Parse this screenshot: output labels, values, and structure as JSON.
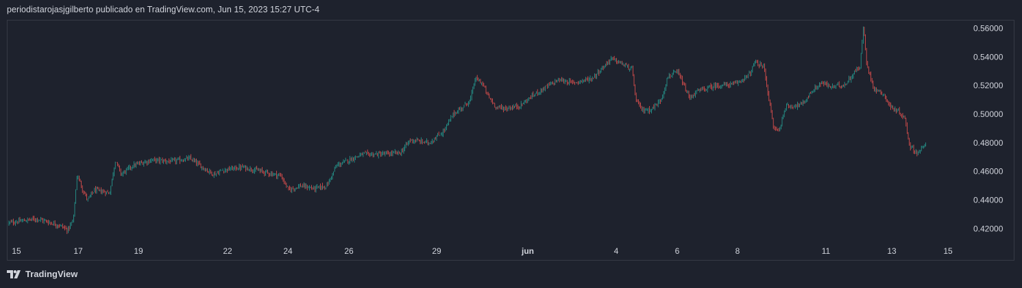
{
  "header": {
    "publisher_line": "periodistarojasjgilberto publicado en TradingView.com, Jun 15, 2023 15:27 UTC-4"
  },
  "footer": {
    "brand": "TradingView",
    "logo_icon": "tradingview-logo-icon"
  },
  "colors": {
    "background": "#1e222d",
    "up": "#26a69a",
    "down": "#ef5350",
    "text": "#d1d4dc",
    "border": "#363a45"
  },
  "chart_data": {
    "type": "candlestick",
    "title": "",
    "xlabel": "",
    "ylabel": "",
    "x_ticks": [
      "15",
      "17",
      "19",
      "22",
      "24",
      "26",
      "29",
      "jun",
      "4",
      "6",
      "8",
      "11",
      "13",
      "15"
    ],
    "bold_x_tick": "jun",
    "y_ticks": [
      "0.56000",
      "0.54000",
      "0.52000",
      "0.50000",
      "0.48000",
      "0.46000",
      "0.44000",
      "0.42000"
    ],
    "ylim": [
      0.412,
      0.565
    ],
    "grid": false,
    "price_path": [
      [
        0,
        0.424
      ],
      [
        0.03,
        0.427
      ],
      [
        0.055,
        0.422
      ],
      [
        0.062,
        0.419
      ],
      [
        0.068,
        0.426
      ],
      [
        0.072,
        0.458
      ],
      [
        0.078,
        0.447
      ],
      [
        0.083,
        0.44
      ],
      [
        0.09,
        0.447
      ],
      [
        0.106,
        0.445
      ],
      [
        0.112,
        0.468
      ],
      [
        0.118,
        0.458
      ],
      [
        0.13,
        0.464
      ],
      [
        0.15,
        0.468
      ],
      [
        0.17,
        0.467
      ],
      [
        0.19,
        0.469
      ],
      [
        0.205,
        0.462
      ],
      [
        0.215,
        0.458
      ],
      [
        0.225,
        0.461
      ],
      [
        0.245,
        0.463
      ],
      [
        0.265,
        0.46
      ],
      [
        0.285,
        0.457
      ],
      [
        0.293,
        0.447
      ],
      [
        0.305,
        0.45
      ],
      [
        0.32,
        0.448
      ],
      [
        0.333,
        0.45
      ],
      [
        0.343,
        0.464
      ],
      [
        0.356,
        0.468
      ],
      [
        0.37,
        0.472
      ],
      [
        0.39,
        0.472
      ],
      [
        0.41,
        0.473
      ],
      [
        0.42,
        0.482
      ],
      [
        0.44,
        0.48
      ],
      [
        0.455,
        0.488
      ],
      [
        0.465,
        0.5
      ],
      [
        0.475,
        0.505
      ],
      [
        0.483,
        0.51
      ],
      [
        0.488,
        0.525
      ],
      [
        0.495,
        0.522
      ],
      [
        0.502,
        0.512
      ],
      [
        0.51,
        0.505
      ],
      [
        0.52,
        0.504
      ],
      [
        0.535,
        0.506
      ],
      [
        0.55,
        0.514
      ],
      [
        0.562,
        0.519
      ],
      [
        0.575,
        0.524
      ],
      [
        0.59,
        0.522
      ],
      [
        0.61,
        0.525
      ],
      [
        0.622,
        0.533
      ],
      [
        0.63,
        0.539
      ],
      [
        0.642,
        0.535
      ],
      [
        0.652,
        0.531
      ],
      [
        0.656,
        0.51
      ],
      [
        0.662,
        0.503
      ],
      [
        0.67,
        0.503
      ],
      [
        0.675,
        0.505
      ],
      [
        0.682,
        0.51
      ],
      [
        0.69,
        0.527
      ],
      [
        0.7,
        0.529
      ],
      [
        0.706,
        0.52
      ],
      [
        0.712,
        0.511
      ],
      [
        0.72,
        0.516
      ],
      [
        0.74,
        0.52
      ],
      [
        0.76,
        0.521
      ],
      [
        0.775,
        0.528
      ],
      [
        0.78,
        0.536
      ],
      [
        0.79,
        0.533
      ],
      [
        0.795,
        0.51
      ],
      [
        0.8,
        0.49
      ],
      [
        0.806,
        0.489
      ],
      [
        0.812,
        0.505
      ],
      [
        0.83,
        0.507
      ],
      [
        0.84,
        0.516
      ],
      [
        0.85,
        0.522
      ],
      [
        0.86,
        0.519
      ],
      [
        0.875,
        0.521
      ],
      [
        0.885,
        0.53
      ],
      [
        0.89,
        0.533
      ],
      [
        0.894,
        0.562
      ],
      [
        0.897,
        0.535
      ],
      [
        0.905,
        0.518
      ],
      [
        0.915,
        0.514
      ],
      [
        0.922,
        0.505
      ],
      [
        0.932,
        0.501
      ],
      [
        0.937,
        0.497
      ],
      [
        0.942,
        0.478
      ],
      [
        0.95,
        0.473
      ],
      [
        0.955,
        0.476
      ],
      [
        0.96,
        0.479
      ]
    ]
  }
}
